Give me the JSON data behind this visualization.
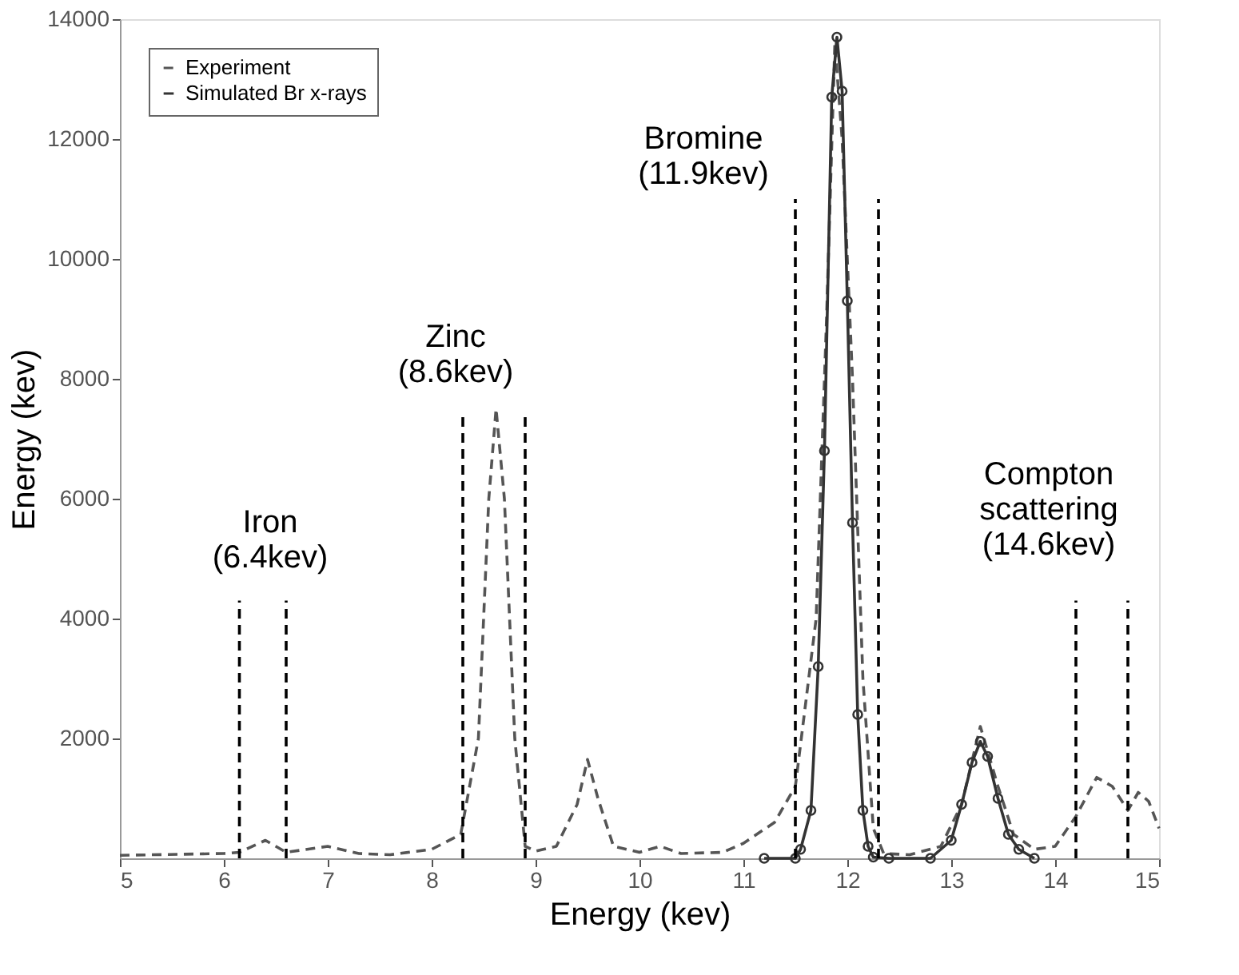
{
  "chart_data": {
    "type": "line",
    "xlabel": "Energy (kev)",
    "ylabel": "Energy (kev)",
    "xlim": [
      5,
      15
    ],
    "ylim": [
      0,
      14000
    ],
    "xticks": [
      5,
      6,
      7,
      8,
      9,
      10,
      11,
      12,
      13,
      14,
      15
    ],
    "yticks": [
      2000,
      4000,
      6000,
      8000,
      10000,
      12000,
      14000
    ],
    "grid": false,
    "legend": "top left",
    "series": [
      {
        "name": "Experiment",
        "color": "#555555",
        "line_style": "dashed",
        "marker": "none",
        "x": [
          5,
          6,
          6.15,
          6.4,
          6.6,
          7.0,
          7.3,
          7.6,
          8.0,
          8.28,
          8.45,
          8.55,
          8.62,
          8.7,
          8.8,
          8.9,
          9.0,
          9.2,
          9.4,
          9.5,
          9.6,
          9.75,
          10.0,
          10.2,
          10.4,
          10.8,
          11.0,
          11.3,
          11.5,
          11.7,
          11.8,
          11.88,
          11.95,
          12.05,
          12.15,
          12.25,
          12.35,
          12.6,
          12.9,
          13.1,
          13.28,
          13.45,
          13.6,
          13.8,
          14.0,
          14.2,
          14.4,
          14.55,
          14.7,
          14.8,
          14.9,
          15.0
        ],
        "values": [
          50,
          80,
          100,
          300,
          100,
          200,
          80,
          60,
          150,
          400,
          2000,
          6000,
          7500,
          6000,
          2000,
          200,
          120,
          200,
          900,
          1650,
          1000,
          200,
          100,
          200,
          80,
          100,
          250,
          600,
          1200,
          4000,
          9000,
          13600,
          12000,
          8000,
          3000,
          500,
          80,
          60,
          200,
          900,
          2200,
          1200,
          400,
          150,
          200,
          700,
          1350,
          1200,
          800,
          1100,
          950,
          500
        ]
      },
      {
        "name": "Simulated Br x-rays",
        "color": "#333333",
        "line_style": "solid",
        "marker": "circle",
        "x": [
          11.2,
          11.5,
          11.55,
          11.65,
          11.72,
          11.78,
          11.85,
          11.9,
          11.95,
          12.0,
          12.05,
          12.1,
          12.15,
          12.2,
          12.25,
          12.4,
          12.8,
          13.0,
          13.1,
          13.2,
          13.28,
          13.35,
          13.45,
          13.55,
          13.65,
          13.8
        ],
        "values": [
          0,
          0,
          150,
          800,
          3200,
          6800,
          12700,
          13700,
          12800,
          9300,
          5600,
          2400,
          800,
          200,
          20,
          0,
          0,
          300,
          900,
          1600,
          1950,
          1700,
          1000,
          400,
          150,
          0
        ]
      },
      {
        "color": "#000000",
        "line_style": "dashed",
        "marker": "none",
        "x": [
          6.15,
          6.15
        ],
        "values": [
          0,
          4300
        ]
      },
      {
        "color": "#000000",
        "line_style": "dashed",
        "marker": "none",
        "x": [
          6.6,
          6.6
        ],
        "values": [
          0,
          4300
        ]
      },
      {
        "color": "#000000",
        "line_style": "dashed",
        "marker": "none",
        "x": [
          8.3,
          8.3
        ],
        "values": [
          0,
          7400
        ]
      },
      {
        "color": "#000000",
        "line_style": "dashed",
        "marker": "none",
        "x": [
          8.9,
          8.9
        ],
        "values": [
          0,
          7400
        ]
      },
      {
        "color": "#000000",
        "line_style": "dashed",
        "marker": "none",
        "x": [
          11.5,
          11.5
        ],
        "values": [
          0,
          11000
        ]
      },
      {
        "color": "#000000",
        "line_style": "dashed",
        "marker": "none",
        "x": [
          12.3,
          12.3
        ],
        "values": [
          0,
          11000
        ]
      },
      {
        "color": "#000000",
        "line_style": "dashed",
        "marker": "none",
        "x": [
          14.2,
          14.2
        ],
        "values": [
          0,
          4300
        ]
      },
      {
        "color": "#000000",
        "line_style": "dashed",
        "marker": "none",
        "x": [
          14.7,
          14.7
        ],
        "values": [
          0,
          4300
        ]
      }
    ],
    "annotations": [
      "Iron\n(6.4kev)",
      "Zinc\n(8.6kev)",
      "Bromine\n(11.9kev)",
      "Compton\nscattering\n(14.6kev)"
    ]
  }
}
